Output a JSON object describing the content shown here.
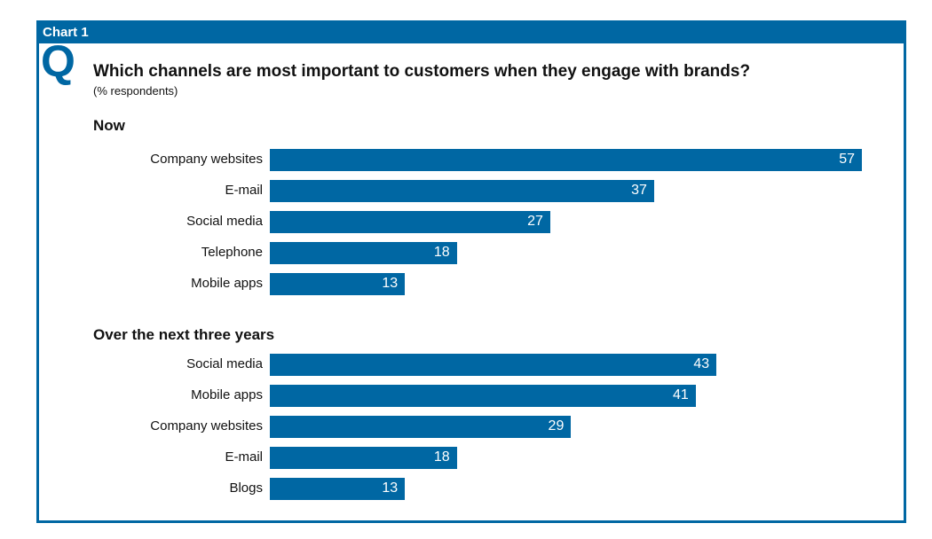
{
  "header": {
    "label": "Chart 1",
    "q_mark": "Q"
  },
  "chart_data": {
    "type": "bar",
    "orientation": "horizontal",
    "title": "Which channels are most important to customers when they engage with brands?",
    "subtitle": "(% respondents)",
    "bar_color": "#0067a3",
    "groups": [
      {
        "name": "Now",
        "categories": [
          "Company websites",
          "E-mail",
          "Social media",
          "Telephone",
          "Mobile apps"
        ],
        "values": [
          57,
          37,
          27,
          18,
          13
        ]
      },
      {
        "name": "Over the next three years",
        "categories": [
          "Social media",
          "Mobile apps",
          "Company websites",
          "E-mail",
          "Blogs"
        ],
        "values": [
          43,
          41,
          29,
          18,
          13
        ]
      }
    ]
  }
}
